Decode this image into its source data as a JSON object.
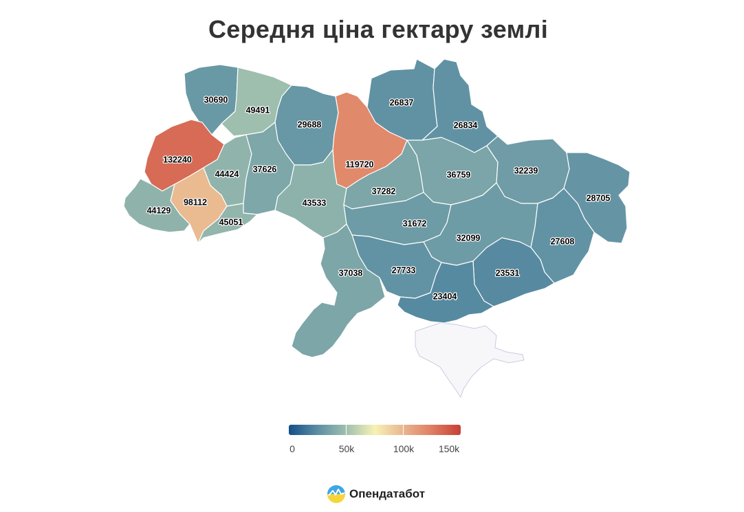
{
  "title": "Середня ціна гектару землі",
  "scale": {
    "min": 0,
    "max": 150000,
    "colors": [
      "#144f89",
      "#5b8ea3",
      "#9fbfae",
      "#f6f2b5",
      "#e9b58e",
      "#df7d62",
      "#c54035"
    ],
    "labels": [
      "0",
      "50k",
      "100k",
      "150k"
    ],
    "label_values": [
      0,
      50000,
      100000,
      150000
    ]
  },
  "regions": [
    {
      "id": "volyn",
      "value": 30690
    },
    {
      "id": "rivne",
      "value": 49491
    },
    {
      "id": "zhytomyr",
      "value": 29688
    },
    {
      "id": "kyiv-oblast",
      "value": 119720
    },
    {
      "id": "chernihiv",
      "value": 26837
    },
    {
      "id": "sumy",
      "value": 26834
    },
    {
      "id": "lviv",
      "value": 132240
    },
    {
      "id": "ternopil",
      "value": 44424
    },
    {
      "id": "khmelnytskyi",
      "value": 37626
    },
    {
      "id": "vinnytsia",
      "value": 43533
    },
    {
      "id": "cherkasy",
      "value": 37282
    },
    {
      "id": "poltava",
      "value": 36759
    },
    {
      "id": "kharkiv",
      "value": 32239
    },
    {
      "id": "luhansk",
      "value": 28705
    },
    {
      "id": "zakarpattia",
      "value": 44129
    },
    {
      "id": "ivano-frankivsk",
      "value": 98112
    },
    {
      "id": "chernivtsi",
      "value": 45051
    },
    {
      "id": "kirovohrad",
      "value": 31672
    },
    {
      "id": "dnipropetrovsk",
      "value": 32099
    },
    {
      "id": "donetsk",
      "value": 27608
    },
    {
      "id": "odesa",
      "value": 37038
    },
    {
      "id": "mykolaiv",
      "value": 27733
    },
    {
      "id": "zaporizhzhia",
      "value": 23531
    },
    {
      "id": "kherson",
      "value": 23404
    }
  ],
  "brand": {
    "name": "Опендатабот",
    "logo_icon": "opendatabot-logo"
  }
}
